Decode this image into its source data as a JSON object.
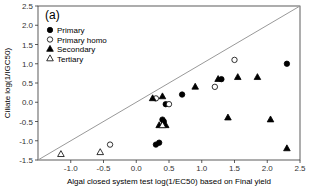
{
  "chart_data": {
    "type": "scatter",
    "title": "(a)",
    "xlabel": "Algal closed system test log(1/EC50) based on Final yield",
    "ylabel": "Ciliate log(1/IGC50)",
    "xlim": [
      -1.5,
      2.5
    ],
    "ylim": [
      -1.5,
      2.5
    ],
    "xticks": [
      {
        "value": -1.0,
        "label": "-1.0"
      },
      -0.5,
      {
        "value": 0.0,
        "label": "0.0"
      },
      0.5,
      {
        "value": 1.0,
        "label": "1.0"
      },
      1.5,
      {
        "value": 2.0,
        "label": "2.0"
      },
      2.5
    ],
    "yticks": [
      -1.5,
      {
        "value": -1.0,
        "label": "-1.0"
      },
      -0.5,
      {
        "value": 0.0,
        "label": "0.0"
      },
      0.5,
      {
        "value": 1.0,
        "label": "1.0"
      },
      1.5,
      {
        "value": 2.0,
        "label": "2.0"
      },
      2.5
    ],
    "grid": false,
    "legend": "upper left",
    "series": [
      {
        "type": "line",
        "color": "#999999",
        "x": [
          -1.5,
          2.5
        ],
        "values": [
          -1.5,
          2.5
        ]
      },
      {
        "name": "Primary",
        "color": "black",
        "marker": "circle",
        "x": [
          0.3,
          0.35,
          0.4,
          0.42,
          0.45,
          0.7,
          1.3,
          2.3
        ],
        "values": [
          -1.1,
          -1.05,
          -0.45,
          -0.5,
          -0.05,
          0.2,
          0.6,
          1.0
        ]
      },
      {
        "name": "Primary homo",
        "color": "black",
        "marker": "open-circle",
        "x": [
          -0.4,
          0.3,
          0.5,
          1.2,
          1.5
        ],
        "values": [
          -1.1,
          0.1,
          -0.05,
          0.4,
          1.1
        ]
      },
      {
        "name": "Secondary",
        "color": "black",
        "marker": "triangle",
        "x": [
          0.25,
          0.35,
          0.4,
          0.45,
          0.9,
          1.25,
          1.4,
          1.55,
          1.85,
          2.05,
          2.3
        ],
        "values": [
          0.1,
          -0.6,
          0.15,
          -0.6,
          0.4,
          0.6,
          -0.4,
          0.65,
          0.65,
          -0.45,
          -1.2
        ]
      },
      {
        "name": "Tertiary",
        "color": "black",
        "marker": "open-triangle",
        "x": [
          -1.15,
          -0.55,
          0.4
        ],
        "values": [
          -1.35,
          -1.3,
          -0.6
        ]
      }
    ]
  }
}
